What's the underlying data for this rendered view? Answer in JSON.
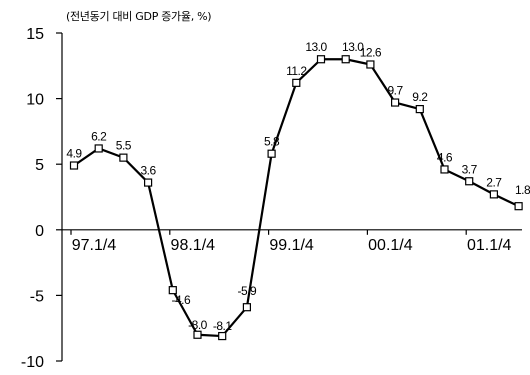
{
  "chart_data": {
    "type": "line",
    "unit_label": "(전년동기 대비 GDP 증가율, %)",
    "ylim": [
      -10,
      15
    ],
    "yticks": [
      15,
      10,
      5,
      0,
      -5,
      -10
    ],
    "xtick_labels": [
      "97.1/4",
      "98.1/4",
      "99.1/4",
      "00.1/4",
      "01.1/4"
    ],
    "xtick_indices": [
      0,
      4,
      8,
      12,
      16
    ],
    "values": [
      4.9,
      6.2,
      5.5,
      3.6,
      -4.6,
      -8.0,
      -8.1,
      -5.9,
      5.8,
      11.2,
      13.0,
      13.0,
      12.6,
      9.7,
      9.2,
      4.6,
      3.7,
      2.7,
      1.8
    ],
    "labels": [
      "4.9",
      "6.2",
      "5.5",
      "3.6",
      "-4.6",
      "-8.0",
      "-8.1",
      "-5.9",
      "5.8",
      "11.2",
      "13.0",
      "13.0",
      "12.6",
      "9.7",
      "9.2",
      "4.6",
      "3.7",
      "2.7",
      "1.8"
    ],
    "grid": false,
    "legend": "none"
  }
}
